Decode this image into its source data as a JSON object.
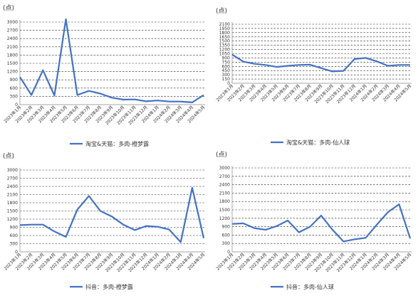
{
  "colors": {
    "series": "#4472C4"
  },
  "chart_data": [
    {
      "type": "line",
      "unit_label": "(点)",
      "ylim": [
        0,
        3000
      ],
      "yticks": [
        "0",
        "300",
        "600",
        "900",
        "1200",
        "1500",
        "1800",
        "2100",
        "2400",
        "2700",
        "3000"
      ],
      "grid": true,
      "legend_position": "bottom",
      "x": [
        "2023年1月",
        "2023年2月",
        "2023年3月",
        "2023年4月",
        "2023年5月",
        "2023年6月",
        "2023年7月",
        "2023年8月",
        "2023年9月",
        "2023年10月",
        "2023年11月",
        "2023年12月",
        "2024年1月",
        "2024年2月",
        "2024年3月",
        "2024年4月",
        "2024年5月"
      ],
      "series": [
        {
          "name": "淘宝&天猫：多肉-橙梦露",
          "values": [
            1000,
            350,
            1250,
            330,
            3100,
            350,
            500,
            400,
            250,
            180,
            190,
            120,
            150,
            110,
            110,
            80,
            350
          ]
        }
      ]
    },
    {
      "type": "line",
      "unit_label": "(点)",
      "ylim": [
        0,
        2100
      ],
      "yticks": [
        "0",
        "150",
        "300",
        "450",
        "600",
        "750",
        "900",
        "1050",
        "1200",
        "1350",
        "1500",
        "1650",
        "1800",
        "1950",
        "2100"
      ],
      "grid": true,
      "legend_position": "bottom",
      "x": [
        "2023年1月",
        "2023年2月",
        "2023年3月",
        "2023年4月",
        "2023年5月",
        "2023年6月",
        "2023年7月",
        "2023年8月",
        "2023年9月",
        "2023年10月",
        "2023年11月",
        "2023年12月",
        "2024年1月",
        "2024年2月",
        "2024年3月",
        "2024年4月",
        "2024年5月"
      ],
      "series": [
        {
          "name": "淘宝&天猫：多肉-仙人球",
          "values": [
            1020,
            770,
            690,
            650,
            580,
            620,
            650,
            660,
            540,
            420,
            440,
            860,
            900,
            780,
            620,
            650,
            650
          ]
        }
      ]
    },
    {
      "type": "line",
      "unit_label": "(点)",
      "ylim": [
        0,
        3000
      ],
      "yticks": [
        "0",
        "300",
        "600",
        "900",
        "1200",
        "1500",
        "1800",
        "2100",
        "2400",
        "2700",
        "3000"
      ],
      "grid": true,
      "legend_position": "bottom",
      "x": [
        "2023年1月",
        "2023年2月",
        "2023年3月",
        "2023年4月",
        "2023年5月",
        "2023年6月",
        "2023年7月",
        "2023年8月",
        "2023年9月",
        "2023年10月",
        "2023年11月",
        "2023年12月",
        "2024年1月",
        "2024年2月",
        "2024年3月",
        "2024年4月",
        "2024年5月"
      ],
      "series": [
        {
          "name": "抖音：多肉-橙梦露",
          "values": [
            980,
            1000,
            1000,
            750,
            550,
            1550,
            2050,
            1500,
            1300,
            1000,
            800,
            950,
            920,
            820,
            360,
            2350,
            500
          ]
        }
      ]
    },
    {
      "type": "line",
      "unit_label": "(点)",
      "ylim": [
        0,
        3000
      ],
      "yticks": [
        "0",
        "300",
        "600",
        "900",
        "1200",
        "1500",
        "1800",
        "2100",
        "2400",
        "2700",
        "3000"
      ],
      "grid": true,
      "legend_position": "bottom",
      "x": [
        "2023年1月",
        "2023年2月",
        "2023年3月",
        "2023年4月",
        "2023年5月",
        "2023年6月",
        "2023年7月",
        "2023年8月",
        "2023年9月",
        "2023年10月",
        "2023年11月",
        "2023年12月",
        "2024年1月",
        "2024年2月",
        "2024年3月",
        "2024年4月",
        "2024年5月"
      ],
      "series": [
        {
          "name": "抖音：多肉-仙人球",
          "values": [
            1000,
            1020,
            850,
            790,
            920,
            1120,
            700,
            900,
            1300,
            800,
            370,
            450,
            500,
            970,
            1420,
            1700,
            480
          ]
        }
      ]
    }
  ]
}
